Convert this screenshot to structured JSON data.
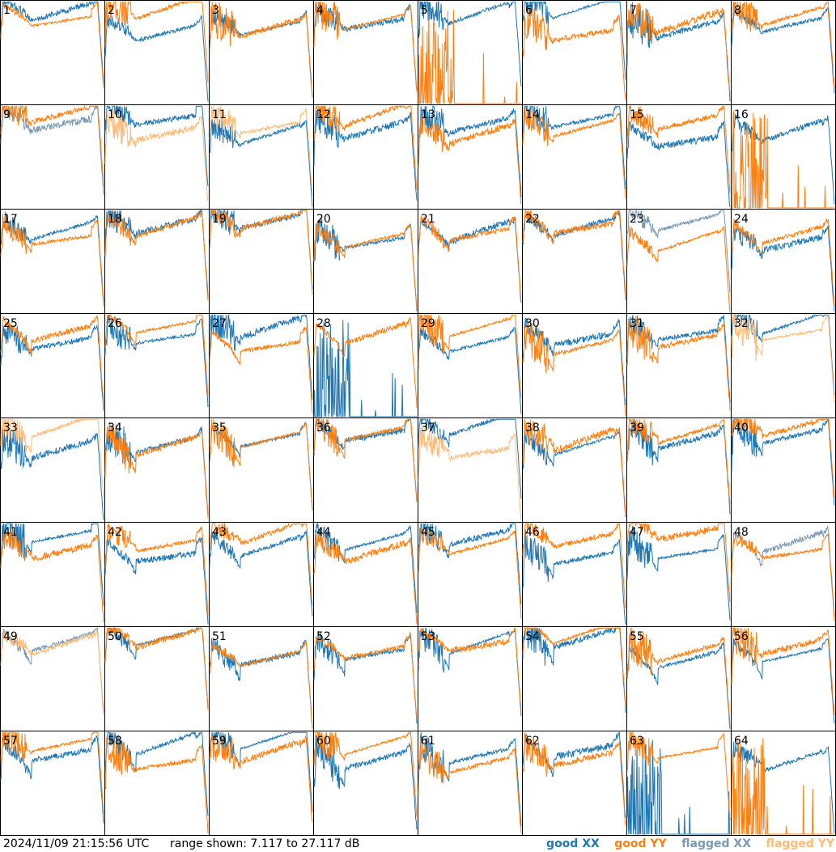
{
  "chart_data": {
    "type": "line",
    "layout": "8x8 small multiples",
    "panels": [
      1,
      2,
      3,
      4,
      5,
      6,
      7,
      8,
      9,
      10,
      11,
      12,
      13,
      14,
      15,
      16,
      17,
      18,
      19,
      20,
      21,
      22,
      23,
      24,
      25,
      26,
      27,
      28,
      29,
      30,
      31,
      32,
      33,
      34,
      35,
      36,
      37,
      38,
      39,
      40,
      41,
      42,
      43,
      44,
      45,
      46,
      47,
      48,
      49,
      50,
      51,
      52,
      53,
      54,
      55,
      56,
      57,
      58,
      59,
      60,
      61,
      62,
      63,
      64
    ],
    "ylim": [
      7.117,
      27.117
    ],
    "series_styles": {
      "good_xx": "#1f77b4",
      "good_yy": "#ff7f0e",
      "flagged_xx": "#7a99b4",
      "flagged_yy": "#ffbb78"
    },
    "flagged_xx_panels": [
      9,
      23,
      48,
      49
    ],
    "flagged_yy_panels": [
      10,
      11,
      32,
      33,
      37,
      49
    ],
    "dead_xx_panels": [
      28,
      63
    ],
    "dead_yy_panels": [
      5,
      16,
      64
    ]
  },
  "footer": {
    "timestamp": "2024/11/09 21:15:56 UTC",
    "range": "range shown: 7.117 to 27.117 dB",
    "legend": {
      "good_prefix": "good",
      "flagged_prefix": "flagged",
      "xx": "XX",
      "yy": "YY"
    }
  }
}
